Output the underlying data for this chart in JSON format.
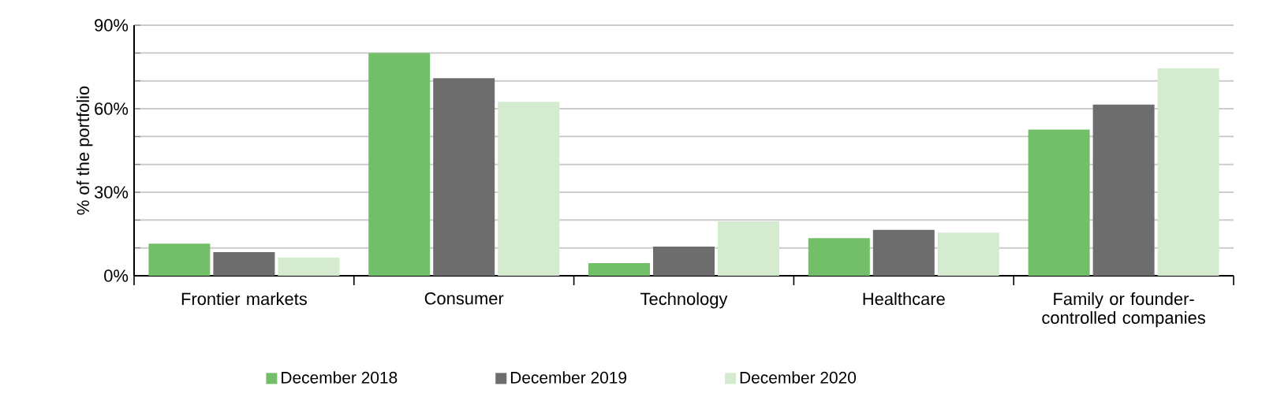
{
  "chart_data": {
    "type": "bar",
    "ylabel": "% of the portfolio",
    "categories": [
      "Frontier markets",
      "Consumer",
      "Technology",
      "Healthcare",
      "Family or founder-controlled companies"
    ],
    "series": [
      {
        "name": "December 2018",
        "color": "#73bf69",
        "values": [
          11.5,
          80,
          4.5,
          13.5,
          52.5
        ]
      },
      {
        "name": "December 2019",
        "color": "#6d6d6d",
        "values": [
          8.5,
          71,
          10.5,
          16.5,
          61.5
        ]
      },
      {
        "name": "December 2020",
        "color": "#d5ebd0",
        "values": [
          6.5,
          62.5,
          19.5,
          15.5,
          74.5
        ]
      }
    ],
    "ylim": [
      0,
      90
    ],
    "yticks": [
      {
        "value": 0,
        "label": "0%"
      },
      {
        "value": 10,
        "label": null
      },
      {
        "value": 20,
        "label": null
      },
      {
        "value": 30,
        "label": "30%"
      },
      {
        "value": 40,
        "label": null
      },
      {
        "value": 50,
        "label": null
      },
      {
        "value": 60,
        "label": "60%"
      },
      {
        "value": 70,
        "label": null
      },
      {
        "value": 80,
        "label": null
      },
      {
        "value": 90,
        "label": "90%"
      }
    ],
    "grid": "y",
    "legend": "bottom"
  }
}
